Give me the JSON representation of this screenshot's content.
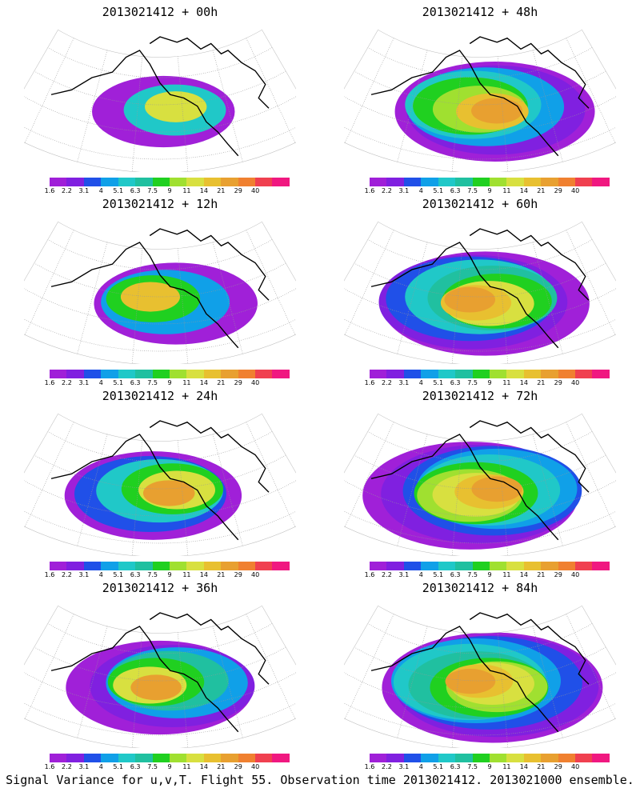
{
  "panels": [
    {
      "title": "2013021412 + 00h",
      "level": 0.15
    },
    {
      "title": "2013021412 + 48h",
      "level": 0.7
    },
    {
      "title": "2013021412 + 12h",
      "level": 0.35
    },
    {
      "title": "2013021412 + 60h",
      "level": 0.78
    },
    {
      "title": "2013021412 + 24h",
      "level": 0.48
    },
    {
      "title": "2013021412 + 72h",
      "level": 0.85
    },
    {
      "title": "2013021412 + 36h",
      "level": 0.58
    },
    {
      "title": "2013021412 + 84h",
      "level": 0.9
    }
  ],
  "colorbar": {
    "colors": [
      "#a020d8",
      "#8020e0",
      "#2050e8",
      "#10a0e8",
      "#20c8c8",
      "#20c0a0",
      "#20d020",
      "#a0e030",
      "#d8e040",
      "#e8c030",
      "#e8a030",
      "#f08030",
      "#f04050",
      "#f01880"
    ],
    "tick_labels": [
      "1.6",
      "2.2",
      "3.1",
      "4",
      "5.1",
      "6.3",
      "7.5",
      "9",
      "11",
      "14",
      "21",
      "29",
      "40"
    ]
  },
  "footer": "Signal Variance for u,v,T. Flight 55. Observation time 2013021412. 2013021000 ensemble."
}
